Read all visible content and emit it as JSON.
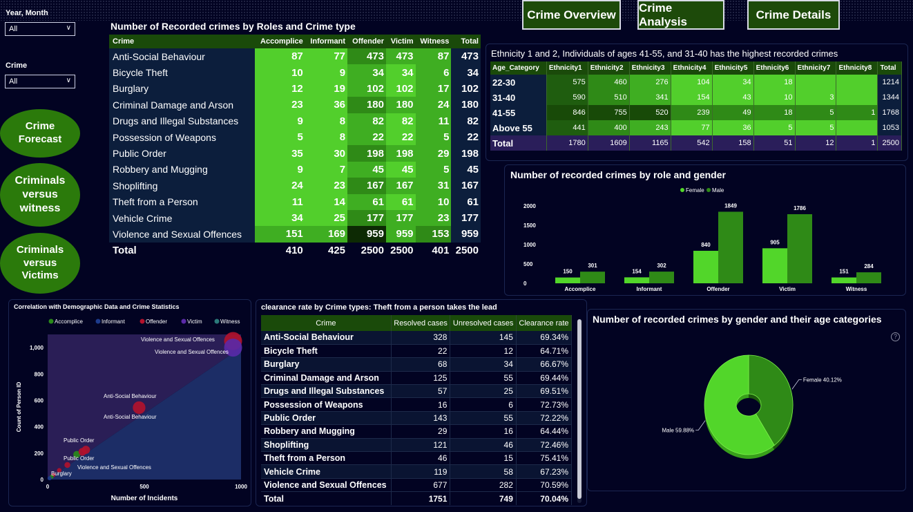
{
  "filters": {
    "year_month_label": "Year, Month",
    "year_month_value": "All",
    "crime_label": "Crime",
    "crime_value": "All"
  },
  "nav": {
    "crime_forecast": "Crime Forecast",
    "criminals_vs_witness": "Criminals versus witness",
    "criminals_vs_victims": "Criminals versus Victims",
    "crime_overview": "Crime Overview",
    "crime_analysis": "Crime Analysis",
    "crime_details": "Crime Details"
  },
  "roles_table": {
    "title": "Number of Recorded crimes by Roles and Crime type",
    "headers": [
      "Crime",
      "Accomplice",
      "Informant",
      "Offender",
      "Victim",
      "Witness",
      "Total"
    ],
    "rows": [
      [
        "Anti-Social Behaviour",
        "87",
        "77",
        "473",
        "473",
        "87",
        "473"
      ],
      [
        "Bicycle Theft",
        "10",
        "9",
        "34",
        "34",
        "6",
        "34"
      ],
      [
        "Burglary",
        "12",
        "19",
        "102",
        "102",
        "17",
        "102"
      ],
      [
        "Criminal Damage and Arson",
        "23",
        "36",
        "180",
        "180",
        "24",
        "180"
      ],
      [
        "Drugs and Illegal Substances",
        "9",
        "8",
        "82",
        "82",
        "11",
        "82"
      ],
      [
        "Possession of Weapons",
        "5",
        "8",
        "22",
        "22",
        "5",
        "22"
      ],
      [
        "Public Order",
        "35",
        "30",
        "198",
        "198",
        "29",
        "198"
      ],
      [
        "Robbery and Mugging",
        "9",
        "7",
        "45",
        "45",
        "5",
        "45"
      ],
      [
        "Shoplifting",
        "24",
        "23",
        "167",
        "167",
        "31",
        "167"
      ],
      [
        "Theft from a Person",
        "11",
        "14",
        "61",
        "61",
        "10",
        "61"
      ],
      [
        "Vehicle Crime",
        "34",
        "25",
        "177",
        "177",
        "23",
        "177"
      ],
      [
        "Violence and Sexual Offences",
        "151",
        "169",
        "959",
        "959",
        "153",
        "959"
      ]
    ],
    "total": [
      "Total",
      "410",
      "425",
      "2500",
      "2500",
      "401",
      "2500"
    ],
    "colors": {
      "light": "#52cf2c",
      "mid": "#3fae22",
      "dark": "#2f8a17",
      "darkest": "#0d2a04"
    }
  },
  "ethnicity_table": {
    "title": "Ethnicity 1 and 2, Individuals of ages 41-55, and 31-40 has the highest recorded crimes",
    "headers": [
      "Age_Category",
      "Ethnicity1",
      "Ethnicity2",
      "Ethnicity3",
      "Ethnicity4",
      "Ethnicity5",
      "Ethnicity6",
      "Ethnicity7",
      "Ethnicity8",
      "Total"
    ],
    "rows": [
      [
        "22-30",
        "575",
        "460",
        "276",
        "104",
        "34",
        "18",
        "",
        "",
        "1214"
      ],
      [
        "31-40",
        "590",
        "510",
        "341",
        "154",
        "43",
        "10",
        "3",
        "",
        "1344"
      ],
      [
        "41-55",
        "846",
        "755",
        "520",
        "239",
        "49",
        "18",
        "5",
        "1",
        "1768"
      ],
      [
        "Above 55",
        "441",
        "400",
        "243",
        "77",
        "36",
        "5",
        "5",
        "",
        "1053"
      ]
    ],
    "total": [
      "Total",
      "1780",
      "1609",
      "1165",
      "542",
      "158",
      "51",
      "12",
      "1",
      "2500"
    ]
  },
  "gender_role_chart": {
    "title": "Number of recorded crimes by role and gender",
    "legend": [
      "Female",
      "Male"
    ],
    "colors": [
      "#52d62a",
      "#2f8a17"
    ],
    "chart_data": {
      "type": "bar",
      "categories": [
        "Accomplice",
        "Informant",
        "Offender",
        "Victim",
        "Witness"
      ],
      "series": [
        {
          "name": "Female",
          "values": [
            150,
            154,
            840,
            905,
            151
          ]
        },
        {
          "name": "Male",
          "values": [
            301,
            302,
            1849,
            1786,
            284
          ]
        }
      ],
      "yticks": [
        "0",
        "500",
        "1000",
        "1500",
        "2000"
      ],
      "ylim": [
        0,
        2000
      ]
    }
  },
  "correlation_chart": {
    "title": "Correlation with Demographic Data and Crime Statistics",
    "legend": [
      {
        "name": "Accomplice",
        "color": "#2a8a1a"
      },
      {
        "name": "Informant",
        "color": "#1d3b8c"
      },
      {
        "name": "Offender",
        "color": "#b3122c"
      },
      {
        "name": "Victim",
        "color": "#5a2aa8"
      },
      {
        "name": "Witness",
        "color": "#2b7a7a"
      }
    ],
    "xlabel": "Number of Incidents",
    "ylabel": "Count of Person ID",
    "xticks": [
      "0",
      "500",
      "1000"
    ],
    "yticks": [
      "0",
      "200",
      "400",
      "600",
      "800",
      "1,000"
    ],
    "annotations": [
      "Violence and Sexual Offences",
      "Violence and Sexual Offences",
      "Anti-Social Behaviour",
      "Anti-Social Behaviour",
      "Public Order",
      "Public Order",
      "Violence and Sexual Offences",
      "Burglary"
    ],
    "chart_data": {
      "type": "scatter",
      "xlim": [
        0,
        1000
      ],
      "ylim": [
        0,
        1100
      ],
      "points": [
        {
          "role": "Offender",
          "x": 959,
          "y": 1050
        },
        {
          "role": "Victim",
          "x": 959,
          "y": 1000
        },
        {
          "role": "Offender",
          "x": 473,
          "y": 545
        },
        {
          "role": "Offender",
          "x": 198,
          "y": 225
        },
        {
          "role": "Accomplice",
          "x": 151,
          "y": 190
        },
        {
          "role": "Offender",
          "x": 180,
          "y": 210
        },
        {
          "role": "Offender",
          "x": 102,
          "y": 110
        },
        {
          "role": "Offender",
          "x": 60,
          "y": 70
        },
        {
          "role": "Offender",
          "x": 30,
          "y": 35
        },
        {
          "role": "Accomplice",
          "x": 20,
          "y": 20
        },
        {
          "role": "Informant",
          "x": 10,
          "y": 10
        }
      ]
    }
  },
  "clearance_table": {
    "title": "clearance rate by Crime types: Theft from a person takes the lead",
    "headers": [
      "Crime",
      "Resolved cases",
      "Unresolved cases",
      "Clearance rate"
    ],
    "rows": [
      [
        "Anti-Social Behaviour",
        "328",
        "145",
        "69.34%"
      ],
      [
        "Bicycle Theft",
        "22",
        "12",
        "64.71%"
      ],
      [
        "Burglary",
        "68",
        "34",
        "66.67%"
      ],
      [
        "Criminal Damage and Arson",
        "125",
        "55",
        "69.44%"
      ],
      [
        "Drugs and Illegal Substances",
        "57",
        "25",
        "69.51%"
      ],
      [
        "Possession of Weapons",
        "16",
        "6",
        "72.73%"
      ],
      [
        "Public Order",
        "143",
        "55",
        "72.22%"
      ],
      [
        "Robbery and Mugging",
        "29",
        "16",
        "64.44%"
      ],
      [
        "Shoplifting",
        "121",
        "46",
        "72.46%"
      ],
      [
        "Theft from a Person",
        "46",
        "15",
        "75.41%"
      ],
      [
        "Vehicle Crime",
        "119",
        "58",
        "67.23%"
      ],
      [
        "Violence and Sexual Offences",
        "677",
        "282",
        "70.59%"
      ]
    ],
    "total": [
      "Total",
      "1751",
      "749",
      "70.04%"
    ]
  },
  "gender_age_chart": {
    "title": "Number of recorded crimes by gender and their age categories",
    "help_icon": "?",
    "chart_data": {
      "type": "pie",
      "labels": [
        "Female 40.12%",
        "Male 59.88%"
      ],
      "values": [
        40.12,
        59.88
      ],
      "colors": [
        "#2f8a17",
        "#52d62a"
      ]
    }
  }
}
